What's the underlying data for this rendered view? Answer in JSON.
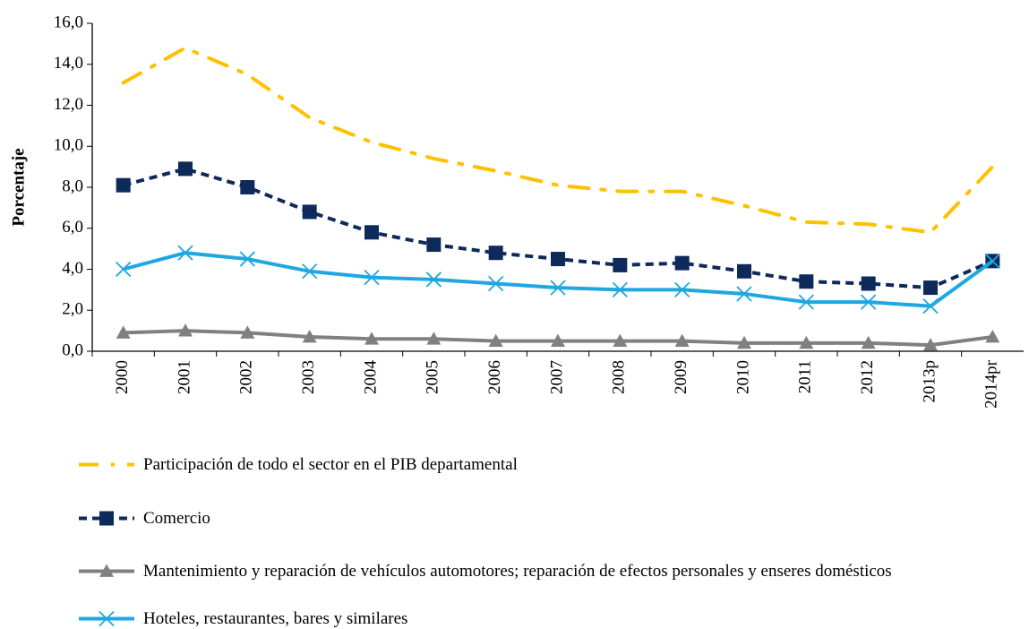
{
  "chart_data": {
    "type": "line",
    "y_label": "Porcentaje",
    "categories": [
      "2000",
      "2001",
      "2002",
      "2003",
      "2004",
      "2005",
      "2006",
      "2007",
      "2008",
      "2009",
      "2010",
      "2011",
      "2012",
      "2013p",
      "2014pr"
    ],
    "ylim": [
      0,
      16
    ],
    "yticks": [
      {
        "value": 0,
        "label": "0,0"
      },
      {
        "value": 2,
        "label": "2,0"
      },
      {
        "value": 4,
        "label": "4,0"
      },
      {
        "value": 6,
        "label": "6,0"
      },
      {
        "value": 8,
        "label": "8,0"
      },
      {
        "value": 10,
        "label": "10,0"
      },
      {
        "value": 12,
        "label": "12,0"
      },
      {
        "value": 14,
        "label": "14,0"
      },
      {
        "value": 16,
        "label": "16,0"
      }
    ],
    "legend": "bottom",
    "series": [
      {
        "name": "Participación de todo el sector en el PIB departamental",
        "color": "#ffc000",
        "dash": "dash-dot",
        "marker": "none",
        "values": [
          13.1,
          14.8,
          13.5,
          11.4,
          10.2,
          9.4,
          8.8,
          8.1,
          7.8,
          7.8,
          7.1,
          6.3,
          6.2,
          5.8,
          9.0
        ]
      },
      {
        "name": "Comercio",
        "color": "#0d2a5a",
        "dash": "dashed",
        "marker": "square",
        "values": [
          8.1,
          8.9,
          8.0,
          6.8,
          5.8,
          5.2,
          4.8,
          4.5,
          4.2,
          4.3,
          3.9,
          3.4,
          3.3,
          3.1,
          4.4
        ]
      },
      {
        "name": "Mantenimiento y reparación de vehículos automotores; reparación de efectos personales y enseres domésticos",
        "color": "#808080",
        "dash": "solid",
        "marker": "triangle",
        "values": [
          0.9,
          1.0,
          0.9,
          0.7,
          0.6,
          0.6,
          0.5,
          0.5,
          0.5,
          0.5,
          0.4,
          0.4,
          0.4,
          0.3,
          0.7
        ]
      },
      {
        "name": "Hoteles, restaurantes, bares y similares",
        "color": "#1ea7e1",
        "dash": "solid",
        "marker": "x",
        "values": [
          4.0,
          4.8,
          4.5,
          3.9,
          3.6,
          3.5,
          3.3,
          3.1,
          3.0,
          3.0,
          2.8,
          2.4,
          2.4,
          2.2,
          4.4
        ]
      }
    ]
  }
}
